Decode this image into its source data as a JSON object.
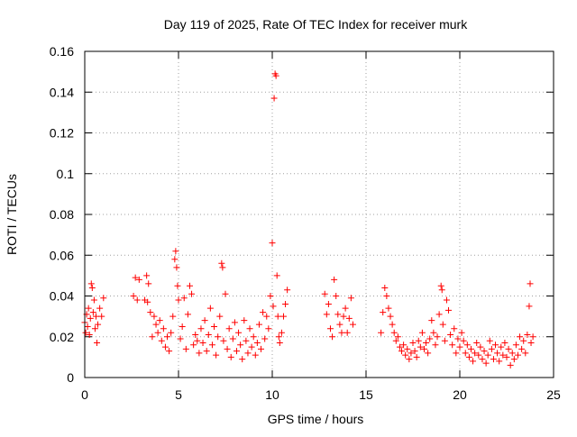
{
  "chart_data": {
    "type": "scatter",
    "title": "Day 119 of 2025, Rate Of TEC Index for receiver murk",
    "xlabel": "GPS time / hours",
    "ylabel": "ROTI / TECUs",
    "xlim": [
      0,
      25
    ],
    "ylim": [
      0,
      0.16
    ],
    "x_ticks": [
      0,
      5,
      10,
      15,
      20,
      25
    ],
    "x_tick_labels": [
      "0",
      "5",
      "10",
      "15",
      "20",
      "25"
    ],
    "y_ticks": [
      0,
      0.02,
      0.04,
      0.06,
      0.08,
      0.1,
      0.12,
      0.14,
      0.16
    ],
    "y_tick_labels": [
      "0",
      "0.02",
      "0.04",
      "0.06",
      "0.08",
      "0.1",
      "0.12",
      "0.14",
      "0.16"
    ],
    "grid": true,
    "legend": "none",
    "marker": "plus",
    "colors": {
      "points": "#ff0000",
      "axes": "#000000",
      "grid": "#a0a0a0"
    },
    "series": [
      {
        "points": [
          [
            0.0,
            0.027
          ],
          [
            0.05,
            0.022
          ],
          [
            0.1,
            0.031
          ],
          [
            0.15,
            0.025
          ],
          [
            0.2,
            0.034
          ],
          [
            0.25,
            0.021
          ],
          [
            0.3,
            0.029
          ],
          [
            0.35,
            0.046
          ],
          [
            0.4,
            0.044
          ],
          [
            0.45,
            0.032
          ],
          [
            0.5,
            0.038
          ],
          [
            0.55,
            0.024
          ],
          [
            0.6,
            0.03
          ],
          [
            0.65,
            0.017
          ],
          [
            0.7,
            0.026
          ],
          [
            0.8,
            0.034
          ],
          [
            0.9,
            0.03
          ],
          [
            1.0,
            0.039
          ],
          [
            2.6,
            0.04
          ],
          [
            2.7,
            0.049
          ],
          [
            2.8,
            0.038
          ],
          [
            2.9,
            0.048
          ],
          [
            3.2,
            0.038
          ],
          [
            3.3,
            0.05
          ],
          [
            3.35,
            0.037
          ],
          [
            3.4,
            0.046
          ],
          [
            3.5,
            0.032
          ],
          [
            3.6,
            0.02
          ],
          [
            3.7,
            0.03
          ],
          [
            3.8,
            0.026
          ],
          [
            3.9,
            0.022
          ],
          [
            4.0,
            0.028
          ],
          [
            4.1,
            0.018
          ],
          [
            4.2,
            0.024
          ],
          [
            4.3,
            0.015
          ],
          [
            4.4,
            0.02
          ],
          [
            4.5,
            0.013
          ],
          [
            4.6,
            0.022
          ],
          [
            4.7,
            0.03
          ],
          [
            4.8,
            0.058
          ],
          [
            4.85,
            0.062
          ],
          [
            4.9,
            0.054
          ],
          [
            4.95,
            0.045
          ],
          [
            5.0,
            0.038
          ],
          [
            5.1,
            0.019
          ],
          [
            5.2,
            0.025
          ],
          [
            5.3,
            0.039
          ],
          [
            5.4,
            0.014
          ],
          [
            5.5,
            0.031
          ],
          [
            5.6,
            0.045
          ],
          [
            5.7,
            0.041
          ],
          [
            5.8,
            0.016
          ],
          [
            5.9,
            0.021
          ],
          [
            6.0,
            0.018
          ],
          [
            6.1,
            0.012
          ],
          [
            6.2,
            0.024
          ],
          [
            6.3,
            0.017
          ],
          [
            6.4,
            0.028
          ],
          [
            6.5,
            0.013
          ],
          [
            6.6,
            0.021
          ],
          [
            6.7,
            0.034
          ],
          [
            6.8,
            0.016
          ],
          [
            6.9,
            0.025
          ],
          [
            7.0,
            0.011
          ],
          [
            7.1,
            0.02
          ],
          [
            7.2,
            0.03
          ],
          [
            7.3,
            0.056
          ],
          [
            7.35,
            0.054
          ],
          [
            7.4,
            0.018
          ],
          [
            7.5,
            0.041
          ],
          [
            7.6,
            0.014
          ],
          [
            7.7,
            0.024
          ],
          [
            7.8,
            0.01
          ],
          [
            7.9,
            0.019
          ],
          [
            8.0,
            0.027
          ],
          [
            8.1,
            0.013
          ],
          [
            8.2,
            0.022
          ],
          [
            8.3,
            0.016
          ],
          [
            8.4,
            0.009
          ],
          [
            8.5,
            0.028
          ],
          [
            8.6,
            0.018
          ],
          [
            8.7,
            0.012
          ],
          [
            8.8,
            0.024
          ],
          [
            8.9,
            0.015
          ],
          [
            9.0,
            0.02
          ],
          [
            9.1,
            0.011
          ],
          [
            9.2,
            0.017
          ],
          [
            9.3,
            0.026
          ],
          [
            9.4,
            0.014
          ],
          [
            9.5,
            0.032
          ],
          [
            9.6,
            0.019
          ],
          [
            9.7,
            0.03
          ],
          [
            9.8,
            0.024
          ],
          [
            9.9,
            0.04
          ],
          [
            10.0,
            0.066
          ],
          [
            10.05,
            0.035
          ],
          [
            10.1,
            0.137
          ],
          [
            10.15,
            0.149
          ],
          [
            10.2,
            0.148
          ],
          [
            10.25,
            0.05
          ],
          [
            10.3,
            0.03
          ],
          [
            10.35,
            0.02
          ],
          [
            10.4,
            0.017
          ],
          [
            10.5,
            0.022
          ],
          [
            10.6,
            0.03
          ],
          [
            10.7,
            0.036
          ],
          [
            10.8,
            0.043
          ],
          [
            12.8,
            0.041
          ],
          [
            12.9,
            0.031
          ],
          [
            13.0,
            0.036
          ],
          [
            13.1,
            0.024
          ],
          [
            13.2,
            0.02
          ],
          [
            13.3,
            0.048
          ],
          [
            13.4,
            0.04
          ],
          [
            13.5,
            0.031
          ],
          [
            13.6,
            0.026
          ],
          [
            13.7,
            0.022
          ],
          [
            13.8,
            0.03
          ],
          [
            13.9,
            0.034
          ],
          [
            14.0,
            0.022
          ],
          [
            14.1,
            0.029
          ],
          [
            14.2,
            0.039
          ],
          [
            14.3,
            0.026
          ],
          [
            15.8,
            0.022
          ],
          [
            15.9,
            0.032
          ],
          [
            16.0,
            0.044
          ],
          [
            16.1,
            0.04
          ],
          [
            16.2,
            0.034
          ],
          [
            16.3,
            0.03
          ],
          [
            16.4,
            0.026
          ],
          [
            16.5,
            0.022
          ],
          [
            16.6,
            0.018
          ],
          [
            16.7,
            0.02
          ],
          [
            16.8,
            0.015
          ],
          [
            16.9,
            0.013
          ],
          [
            17.0,
            0.016
          ],
          [
            17.1,
            0.011
          ],
          [
            17.2,
            0.014
          ],
          [
            17.3,
            0.009
          ],
          [
            17.4,
            0.012
          ],
          [
            17.5,
            0.017
          ],
          [
            17.6,
            0.013
          ],
          [
            17.7,
            0.01
          ],
          [
            17.8,
            0.018
          ],
          [
            17.9,
            0.015
          ],
          [
            18.0,
            0.022
          ],
          [
            18.1,
            0.014
          ],
          [
            18.2,
            0.017
          ],
          [
            18.3,
            0.012
          ],
          [
            18.4,
            0.019
          ],
          [
            18.5,
            0.028
          ],
          [
            18.6,
            0.022
          ],
          [
            18.7,
            0.016
          ],
          [
            18.8,
            0.02
          ],
          [
            18.9,
            0.031
          ],
          [
            19.0,
            0.045
          ],
          [
            19.05,
            0.043
          ],
          [
            19.1,
            0.026
          ],
          [
            19.2,
            0.018
          ],
          [
            19.3,
            0.038
          ],
          [
            19.4,
            0.033
          ],
          [
            19.5,
            0.021
          ],
          [
            19.6,
            0.016
          ],
          [
            19.7,
            0.024
          ],
          [
            19.8,
            0.012
          ],
          [
            19.9,
            0.019
          ],
          [
            20.0,
            0.015
          ],
          [
            20.1,
            0.022
          ],
          [
            20.2,
            0.018
          ],
          [
            20.3,
            0.012
          ],
          [
            20.4,
            0.016
          ],
          [
            20.5,
            0.01
          ],
          [
            20.6,
            0.014
          ],
          [
            20.7,
            0.008
          ],
          [
            20.8,
            0.012
          ],
          [
            20.9,
            0.017
          ],
          [
            21.0,
            0.011
          ],
          [
            21.1,
            0.015
          ],
          [
            21.2,
            0.009
          ],
          [
            21.3,
            0.013
          ],
          [
            21.4,
            0.007
          ],
          [
            21.5,
            0.011
          ],
          [
            21.6,
            0.018
          ],
          [
            21.7,
            0.014
          ],
          [
            21.8,
            0.009
          ],
          [
            21.9,
            0.016
          ],
          [
            22.0,
            0.012
          ],
          [
            22.1,
            0.008
          ],
          [
            22.2,
            0.015
          ],
          [
            22.3,
            0.011
          ],
          [
            22.4,
            0.017
          ],
          [
            22.5,
            0.01
          ],
          [
            22.6,
            0.014
          ],
          [
            22.7,
            0.006
          ],
          [
            22.8,
            0.012
          ],
          [
            22.9,
            0.009
          ],
          [
            23.0,
            0.016
          ],
          [
            23.1,
            0.011
          ],
          [
            23.2,
            0.02
          ],
          [
            23.3,
            0.014
          ],
          [
            23.4,
            0.018
          ],
          [
            23.5,
            0.012
          ],
          [
            23.6,
            0.021
          ],
          [
            23.7,
            0.035
          ],
          [
            23.75,
            0.046
          ],
          [
            23.8,
            0.017
          ],
          [
            23.9,
            0.02
          ]
        ]
      }
    ]
  }
}
